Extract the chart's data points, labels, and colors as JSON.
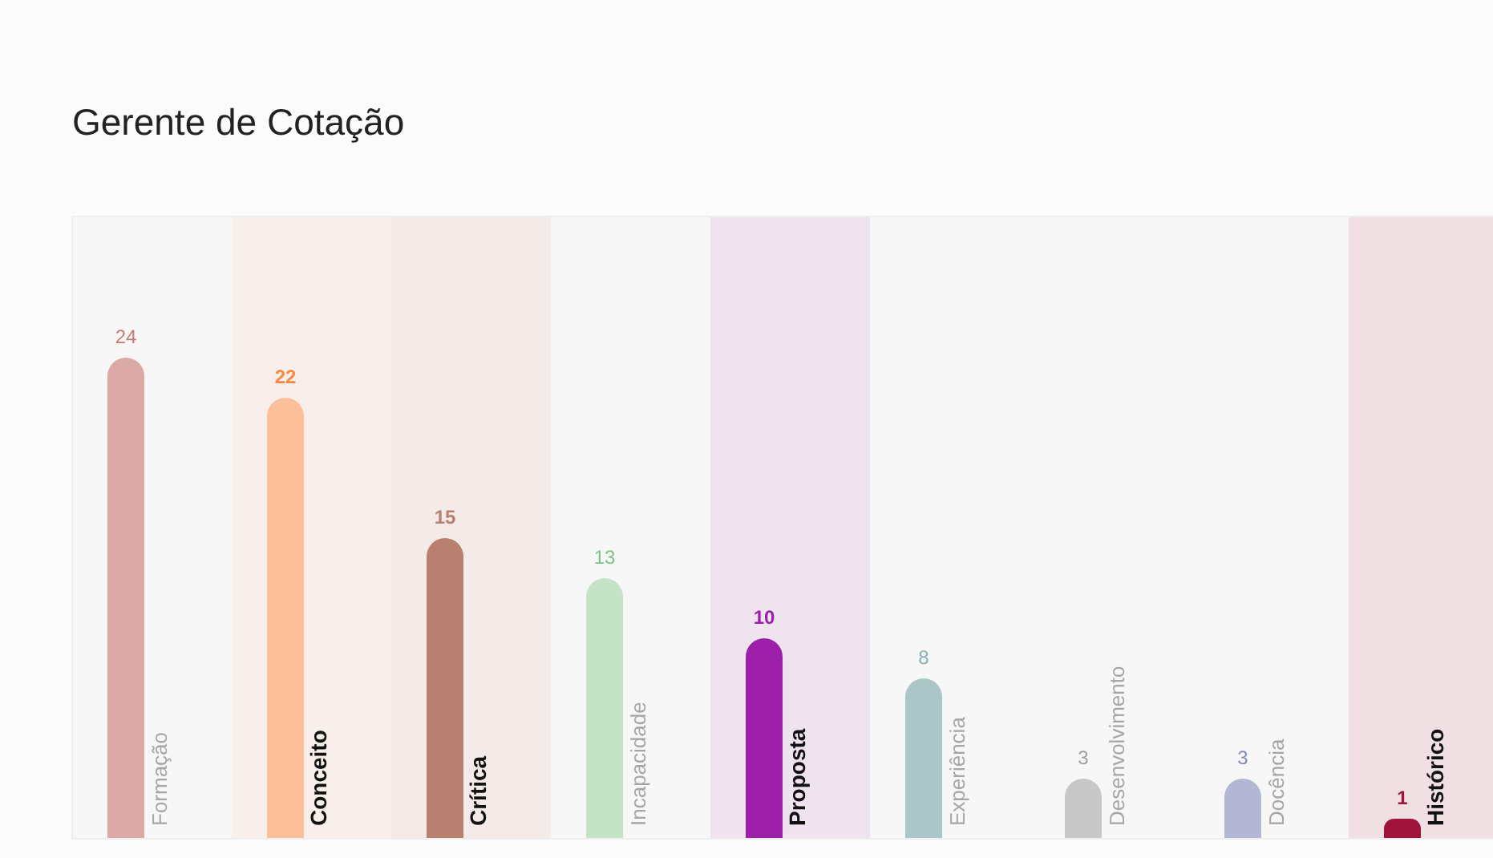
{
  "chart_data": {
    "type": "bar",
    "title": "Gerente de Cotação",
    "categories": [
      "Formação",
      "Conceito",
      "Crítica",
      "Incapacidade",
      "Proposta",
      "Experiência",
      "Desenvolvimento",
      "Docência",
      "Histórico"
    ],
    "values": [
      24,
      22,
      15,
      13,
      10,
      8,
      3,
      3,
      1
    ],
    "colors": [
      "#dba9a6",
      "#fdbf99",
      "#b98070",
      "#c5e4c7",
      "#9b1fa8",
      "#aac6c6",
      "#c8c8c8",
      "#b3b7d3",
      "#a0143c"
    ],
    "data_labels": true,
    "grid": false,
    "bands": [
      {
        "axis": "x",
        "from": "Conceito",
        "to": "Conceito",
        "color": "#f9efea"
      },
      {
        "axis": "x",
        "from": "Crítica",
        "to": "Crítica",
        "color": "#f4ebe8"
      },
      {
        "axis": "x",
        "from": "Proposta",
        "to": "Proposta",
        "color": "#efe3ef"
      },
      {
        "axis": "x",
        "from": "Histórico",
        "to": "Histórico",
        "color": "#f0e0e4"
      }
    ]
  }
}
